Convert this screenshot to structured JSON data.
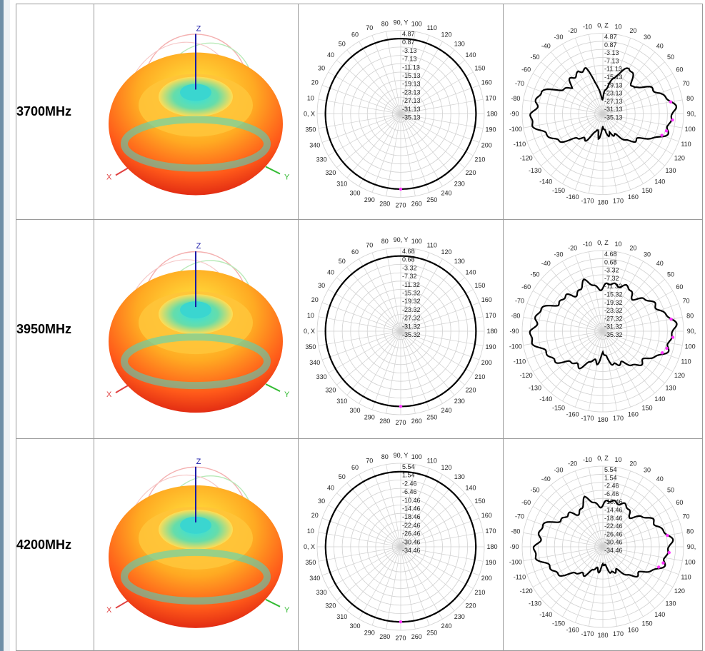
{
  "rows": [
    {
      "freq": "3700MHz",
      "rings_left": [
        "4.87",
        "0.87",
        "-3.13",
        "-7.13",
        "-11.13",
        "-15.13",
        "-19.13",
        "-23.13",
        "-27.13",
        "-31.13",
        "-35.13"
      ],
      "rings_right": [
        "4.87",
        "0.87",
        "-3.13",
        "-7.13",
        "-11.13",
        "-15.13",
        "-19.13",
        "-23.13",
        "-27.13",
        "-31.13",
        "-35.13"
      ]
    },
    {
      "freq": "3950MHz",
      "rings_left": [
        "4.68",
        "0.68",
        "-3.32",
        "-7.32",
        "-11.32",
        "-15.32",
        "-19.32",
        "-23.32",
        "-27.32",
        "-31.32",
        "-35.32"
      ],
      "rings_right": [
        "4.68",
        "0.68",
        "-3.32",
        "-7.32",
        "-11.32",
        "-15.32",
        "-19.32",
        "-23.32",
        "-27.32",
        "-31.32",
        "-35.32"
      ]
    },
    {
      "freq": "4200MHz",
      "rings_left": [
        "5.54",
        "1.54",
        "-2.46",
        "-6.46",
        "-10.46",
        "-14.46",
        "-18.46",
        "-22.46",
        "-26.46",
        "-30.46",
        "-34.46"
      ],
      "rings_right": [
        "5.54",
        "1.54",
        "-2.46",
        "-6.46",
        "-10.46",
        "-14.46",
        "-18.46",
        "-22.46",
        "-26.46",
        "-30.46",
        "-34.46"
      ]
    }
  ],
  "axes_3d": {
    "z": "Z",
    "x": "X",
    "y": "Y"
  },
  "horizontal_plane_angles": [
    "90, Y",
    "80",
    "70",
    "60",
    "50",
    "40",
    "30",
    "20",
    "10",
    "0, X",
    "350",
    "340",
    "330",
    "320",
    "310",
    "300",
    "290",
    "280",
    "270",
    "260",
    "250",
    "240",
    "230",
    "220",
    "210",
    "200",
    "190",
    "180",
    "170",
    "160",
    "150",
    "140",
    "130",
    "120",
    "110",
    "100"
  ],
  "vertical_plane_angles": [
    "0, Z",
    "10",
    "20",
    "30",
    "40",
    "50",
    "60",
    "70",
    "80",
    "90,",
    "100",
    "110",
    "120",
    "130",
    "140",
    "150",
    "160",
    "170",
    "180",
    "-170",
    "-160",
    "-150",
    "-140",
    "-130",
    "-120",
    "-110",
    "-100",
    "-90",
    "-80",
    "-70",
    "-60",
    "-50",
    "-40",
    "-30",
    "-20",
    "-10"
  ],
  "colors": {
    "trace": "#000000",
    "grid": "#d0d0d0",
    "marker": "#ff33ff",
    "zaxis": "#1a1aa8",
    "xaxis": "#e04040",
    "yaxis": "#33bb33"
  },
  "chart_data": [
    {
      "type": "polar",
      "plane": "horizontal",
      "frequency": "3700MHz",
      "rlim": [
        -35.13,
        4.87
      ],
      "angles_deg": [
        0,
        90,
        180,
        270
      ],
      "gain_db": [
        0.9,
        0.9,
        0.9,
        0.9
      ]
    },
    {
      "type": "polar",
      "plane": "vertical",
      "frequency": "3700MHz",
      "rlim": [
        -35.13,
        4.87
      ],
      "angles_deg": [
        0,
        10,
        20,
        30,
        40,
        50,
        60,
        70,
        80,
        90,
        100,
        110,
        120,
        130,
        140,
        150,
        160,
        170,
        180,
        -170,
        -160,
        -150,
        -140,
        -130,
        -120,
        -110,
        -100,
        -90,
        -80,
        -70,
        -60,
        -50,
        -40,
        -30,
        -20,
        -10
      ],
      "gain_db": [
        -28,
        -22,
        -13,
        -10,
        -12,
        -15,
        -10,
        -4,
        -1,
        0,
        -1,
        -4,
        -10,
        -15,
        -19,
        -22,
        -26,
        -24,
        -29,
        -24,
        -26,
        -22,
        -19,
        -15,
        -10,
        -4,
        -1,
        0,
        -1,
        -4,
        -10,
        -15,
        -12,
        -10,
        -13,
        -22
      ]
    },
    {
      "type": "polar",
      "plane": "horizontal",
      "frequency": "3950MHz",
      "rlim": [
        -35.32,
        4.68
      ],
      "angles_deg": [
        0,
        90,
        180,
        270
      ],
      "gain_db": [
        0.7,
        0.7,
        0.7,
        0.7
      ]
    },
    {
      "type": "polar",
      "plane": "vertical",
      "frequency": "3950MHz",
      "rlim": [
        -35.32,
        4.68
      ],
      "angles_deg": [
        0,
        10,
        20,
        30,
        40,
        50,
        60,
        70,
        80,
        90,
        100,
        110,
        120,
        130,
        140,
        150,
        160,
        170,
        180,
        -170,
        -160,
        -150,
        -140,
        -130,
        -120,
        -110,
        -100,
        -90,
        -80,
        -70,
        -60,
        -50,
        -40,
        -30,
        -20,
        -10
      ],
      "gain_db": [
        -14,
        -12,
        -10,
        -11,
        -13,
        -10,
        -8,
        -4,
        -1,
        0,
        -1,
        -4,
        -8,
        -11,
        -14,
        -16,
        -19,
        -20,
        -25,
        -20,
        -19,
        -16,
        -14,
        -11,
        -8,
        -4,
        -1,
        0,
        -1,
        -4,
        -8,
        -10,
        -13,
        -11,
        -10,
        -12
      ]
    },
    {
      "type": "polar",
      "plane": "horizontal",
      "frequency": "4200MHz",
      "rlim": [
        -34.46,
        5.54
      ],
      "angles_deg": [
        0,
        90,
        180,
        270
      ],
      "gain_db": [
        1.5,
        1.5,
        1.5,
        1.5
      ]
    },
    {
      "type": "polar",
      "plane": "vertical",
      "frequency": "4200MHz",
      "rlim": [
        -34.46,
        5.54
      ],
      "angles_deg": [
        0,
        10,
        20,
        30,
        40,
        50,
        60,
        70,
        80,
        90,
        100,
        110,
        120,
        130,
        140,
        150,
        160,
        170,
        180,
        -170,
        -160,
        -150,
        -140,
        -130,
        -120,
        -110,
        -100,
        -90,
        -80,
        -70,
        -60,
        -50,
        -40,
        -30,
        -20,
        -10
      ],
      "gain_db": [
        -14,
        -12,
        -10,
        -12,
        -14,
        -11,
        -8,
        -4,
        -2,
        -1,
        -2,
        -5,
        -9,
        -13,
        -17,
        -20,
        -22,
        -23,
        -26,
        -23,
        -22,
        -20,
        -17,
        -13,
        -9,
        -5,
        -2,
        -1,
        -2,
        -4,
        -8,
        -11,
        -14,
        -12,
        -10,
        -12
      ]
    }
  ]
}
